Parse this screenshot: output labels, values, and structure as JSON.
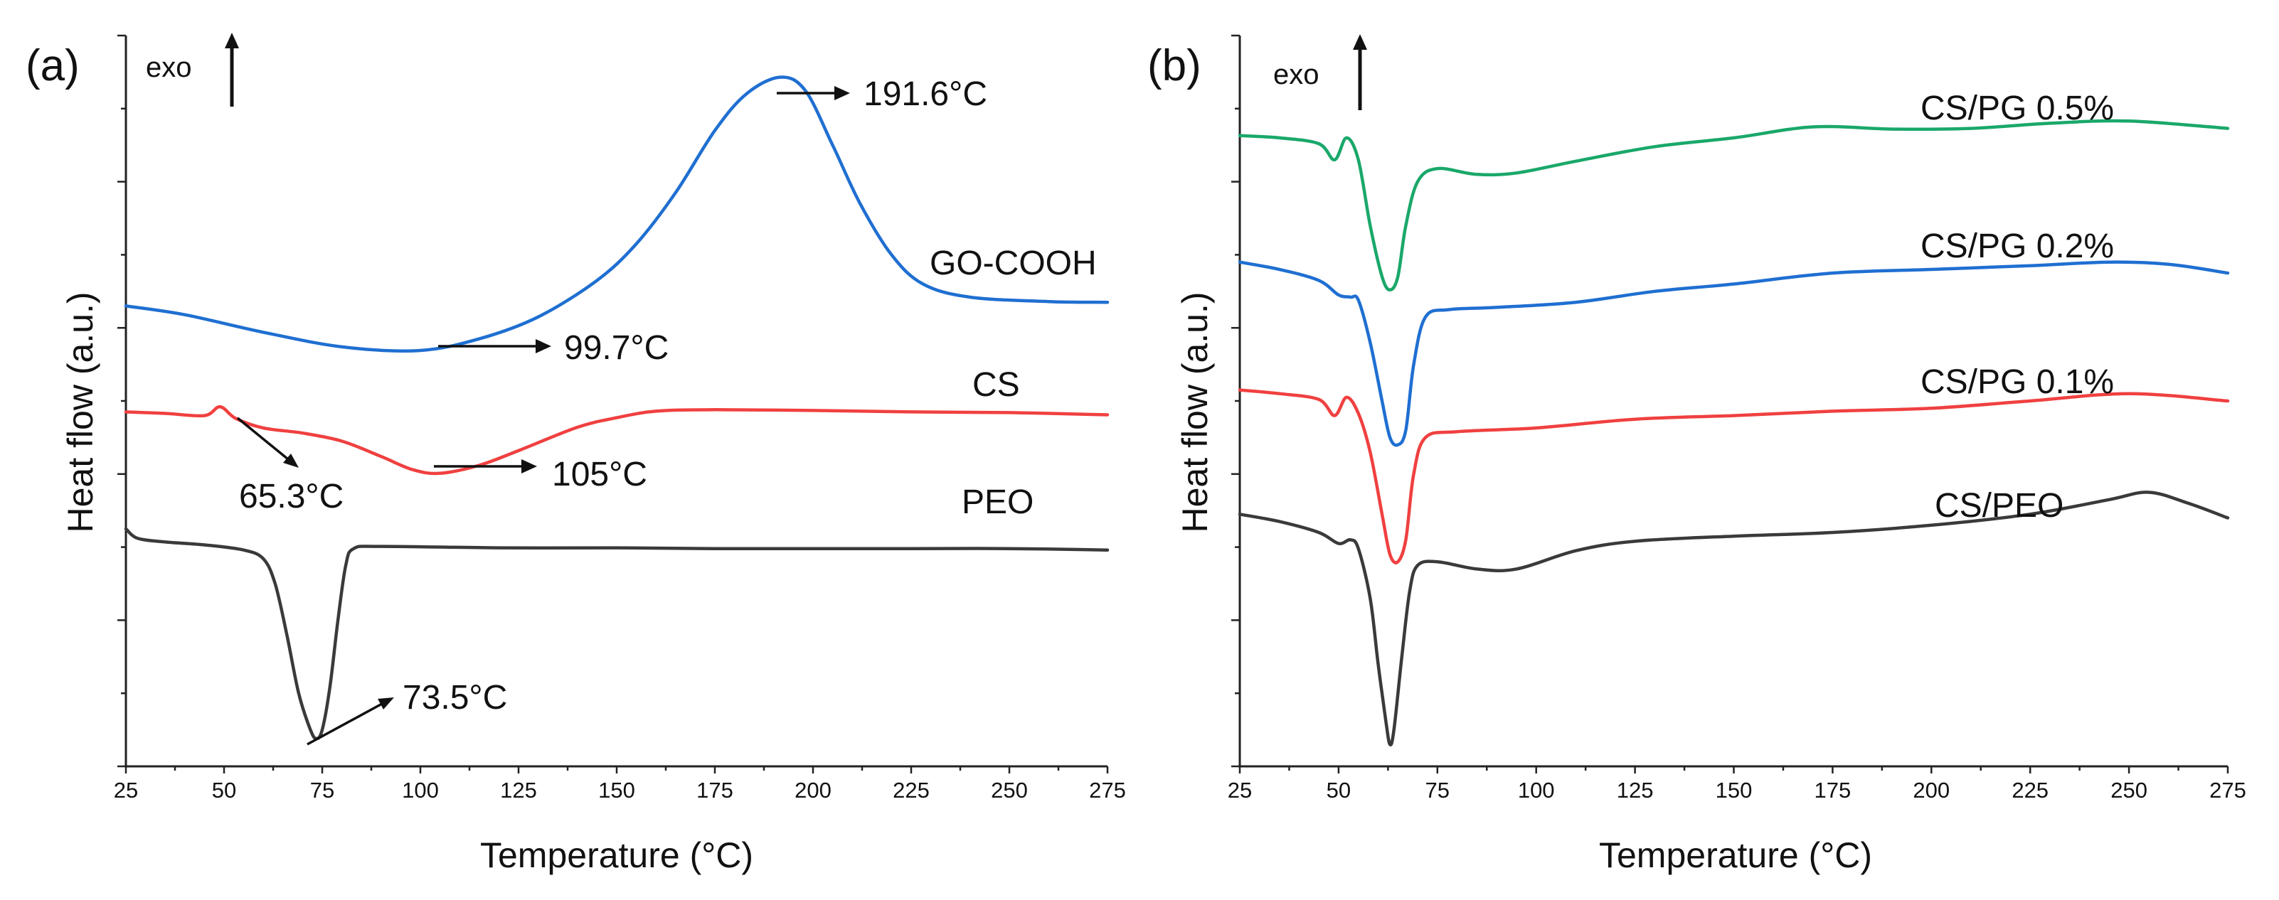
{
  "chart_data": [
    {
      "type": "line",
      "panel_label": "(a)",
      "exo_label": "exo",
      "xlabel": "Temperature (°C)",
      "ylabel": "Heat flow (a.u.)",
      "xlim": [
        25,
        275
      ],
      "ylim": [
        0,
        100
      ],
      "xticks": [
        25,
        50,
        75,
        100,
        125,
        150,
        175,
        200,
        225,
        250,
        275
      ],
      "yticks_minor_count": 11,
      "series": [
        {
          "name": "GO-COOH",
          "color": "#1f6fd1",
          "points": [
            [
              25,
              63.0
            ],
            [
              40,
              61.8
            ],
            [
              60,
              59.4
            ],
            [
              80,
              57.4
            ],
            [
              99.7,
              56.9
            ],
            [
              115,
              58.5
            ],
            [
              130,
              61.5
            ],
            [
              145,
              66.5
            ],
            [
              155,
              71.5
            ],
            [
              165,
              78.5
            ],
            [
              175,
              87.0
            ],
            [
              183,
              92.0
            ],
            [
              191.6,
              94.3
            ],
            [
              198,
              92.5
            ],
            [
              205,
              85.0
            ],
            [
              212,
              77.0
            ],
            [
              220,
              70.0
            ],
            [
              228,
              66.0
            ],
            [
              240,
              64.2
            ],
            [
              260,
              63.6
            ],
            [
              275,
              63.5
            ]
          ]
        },
        {
          "name": "CS",
          "color": "#f04040",
          "points": [
            [
              25,
              48.5
            ],
            [
              35,
              48.3
            ],
            [
              45,
              48.0
            ],
            [
              49,
              49.2
            ],
            [
              53,
              47.6
            ],
            [
              60,
              46.3
            ],
            [
              70,
              45.6
            ],
            [
              80,
              44.5
            ],
            [
              90,
              42.4
            ],
            [
              98,
              40.6
            ],
            [
              105,
              40.1
            ],
            [
              115,
              41.2
            ],
            [
              125,
              43.2
            ],
            [
              140,
              46.4
            ],
            [
              150,
              47.7
            ],
            [
              160,
              48.6
            ],
            [
              175,
              48.8
            ],
            [
              200,
              48.7
            ],
            [
              225,
              48.5
            ],
            [
              250,
              48.4
            ],
            [
              275,
              48.1
            ]
          ]
        },
        {
          "name": "PEO",
          "color": "#3a3a3a",
          "points": [
            [
              25,
              32.5
            ],
            [
              28,
              31.2
            ],
            [
              35,
              30.7
            ],
            [
              45,
              30.3
            ],
            [
              55,
              29.6
            ],
            [
              60,
              28.4
            ],
            [
              63,
              25.0
            ],
            [
              66,
              18.0
            ],
            [
              69,
              10.0
            ],
            [
              72,
              5.0
            ],
            [
              73.5,
              3.8
            ],
            [
              75,
              5.0
            ],
            [
              77,
              11.0
            ],
            [
              79,
              20.0
            ],
            [
              81,
              27.5
            ],
            [
              83,
              29.8
            ],
            [
              90,
              30.1
            ],
            [
              120,
              29.9
            ],
            [
              150,
              29.9
            ],
            [
              175,
              29.8
            ],
            [
              200,
              29.8
            ],
            [
              225,
              29.8
            ],
            [
              250,
              29.8
            ],
            [
              275,
              29.6
            ]
          ]
        }
      ],
      "series_labels": [
        "GO-COOH",
        "CS",
        "PEO"
      ],
      "annotations": [
        "191.6°C",
        "99.7°C",
        "65.3°C",
        "105°C",
        "73.5°C"
      ]
    },
    {
      "type": "line",
      "panel_label": "(b)",
      "exo_label": "exo",
      "xlabel": "Temperature (°C)",
      "ylabel": "Heat flow (a.u.)",
      "xlim": [
        25,
        275
      ],
      "ylim": [
        0,
        100
      ],
      "xticks": [
        25,
        50,
        75,
        100,
        125,
        150,
        175,
        200,
        225,
        250,
        275
      ],
      "yticks_minor_count": 11,
      "series": [
        {
          "name": "CS/PG 0.5%",
          "color": "#1aa86a",
          "points": [
            [
              25,
              86.3
            ],
            [
              35,
              86.0
            ],
            [
              45,
              85.2
            ],
            [
              49,
              83.0
            ],
            [
              52,
              86.0
            ],
            [
              55,
              83.0
            ],
            [
              58,
              74.0
            ],
            [
              61,
              67.0
            ],
            [
              63,
              65.2
            ],
            [
              65,
              67.0
            ],
            [
              67,
              74.0
            ],
            [
              70,
              80.0
            ],
            [
              75,
              81.8
            ],
            [
              85,
              81.0
            ],
            [
              95,
              81.2
            ],
            [
              110,
              82.8
            ],
            [
              130,
              84.8
            ],
            [
              150,
              86.0
            ],
            [
              170,
              87.5
            ],
            [
              190,
              87.2
            ],
            [
              210,
              87.3
            ],
            [
              230,
              88.0
            ],
            [
              250,
              88.3
            ],
            [
              275,
              87.3
            ]
          ]
        },
        {
          "name": "CS/PG 0.2%",
          "color": "#1f6fd1",
          "points": [
            [
              25,
              69.0
            ],
            [
              35,
              68.0
            ],
            [
              45,
              66.5
            ],
            [
              50,
              64.5
            ],
            [
              53,
              64.2
            ],
            [
              55,
              63.8
            ],
            [
              58,
              58.0
            ],
            [
              61,
              50.0
            ],
            [
              63,
              45.0
            ],
            [
              65,
              44.0
            ],
            [
              67,
              46.0
            ],
            [
              69,
              55.0
            ],
            [
              72,
              61.5
            ],
            [
              78,
              62.5
            ],
            [
              90,
              62.8
            ],
            [
              110,
              63.5
            ],
            [
              130,
              65.0
            ],
            [
              150,
              66.0
            ],
            [
              175,
              67.5
            ],
            [
              200,
              68.0
            ],
            [
              225,
              68.5
            ],
            [
              245,
              69.0
            ],
            [
              260,
              68.7
            ],
            [
              275,
              67.5
            ]
          ]
        },
        {
          "name": "CS/PG 0.1%",
          "color": "#f04040",
          "points": [
            [
              25,
              51.5
            ],
            [
              35,
              51.0
            ],
            [
              45,
              50.2
            ],
            [
              49,
              48.0
            ],
            [
              52,
              50.5
            ],
            [
              55,
              48.3
            ],
            [
              58,
              43.0
            ],
            [
              61,
              34.5
            ],
            [
              63,
              29.0
            ],
            [
              65,
              28.0
            ],
            [
              67,
              31.0
            ],
            [
              69,
              40.0
            ],
            [
              72,
              45.0
            ],
            [
              80,
              45.8
            ],
            [
              100,
              46.3
            ],
            [
              125,
              47.5
            ],
            [
              150,
              48.0
            ],
            [
              175,
              48.6
            ],
            [
              200,
              49.0
            ],
            [
              225,
              50.0
            ],
            [
              250,
              51.0
            ],
            [
              275,
              50.0
            ]
          ]
        },
        {
          "name": "CS/PEO",
          "color": "#3a3a3a",
          "points": [
            [
              25,
              34.5
            ],
            [
              35,
              33.5
            ],
            [
              45,
              32.0
            ],
            [
              50,
              30.5
            ],
            [
              53,
              31.0
            ],
            [
              55,
              29.8
            ],
            [
              58,
              23.0
            ],
            [
              60,
              14.0
            ],
            [
              62,
              6.0
            ],
            [
              63,
              3.0
            ],
            [
              64,
              5.0
            ],
            [
              66,
              15.0
            ],
            [
              68,
              24.0
            ],
            [
              70,
              27.5
            ],
            [
              75,
              28.0
            ],
            [
              85,
              27.0
            ],
            [
              95,
              27.0
            ],
            [
              110,
              29.5
            ],
            [
              125,
              30.8
            ],
            [
              150,
              31.5
            ],
            [
              175,
              32.0
            ],
            [
              200,
              33.0
            ],
            [
              225,
              34.5
            ],
            [
              245,
              36.5
            ],
            [
              255,
              37.5
            ],
            [
              265,
              36.0
            ],
            [
              275,
              34.0
            ]
          ]
        }
      ],
      "series_labels": [
        "CS/PG 0.5%",
        "CS/PG 0.2%",
        "CS/PG 0.1%",
        "CS/PEO"
      ],
      "annotations": []
    }
  ]
}
